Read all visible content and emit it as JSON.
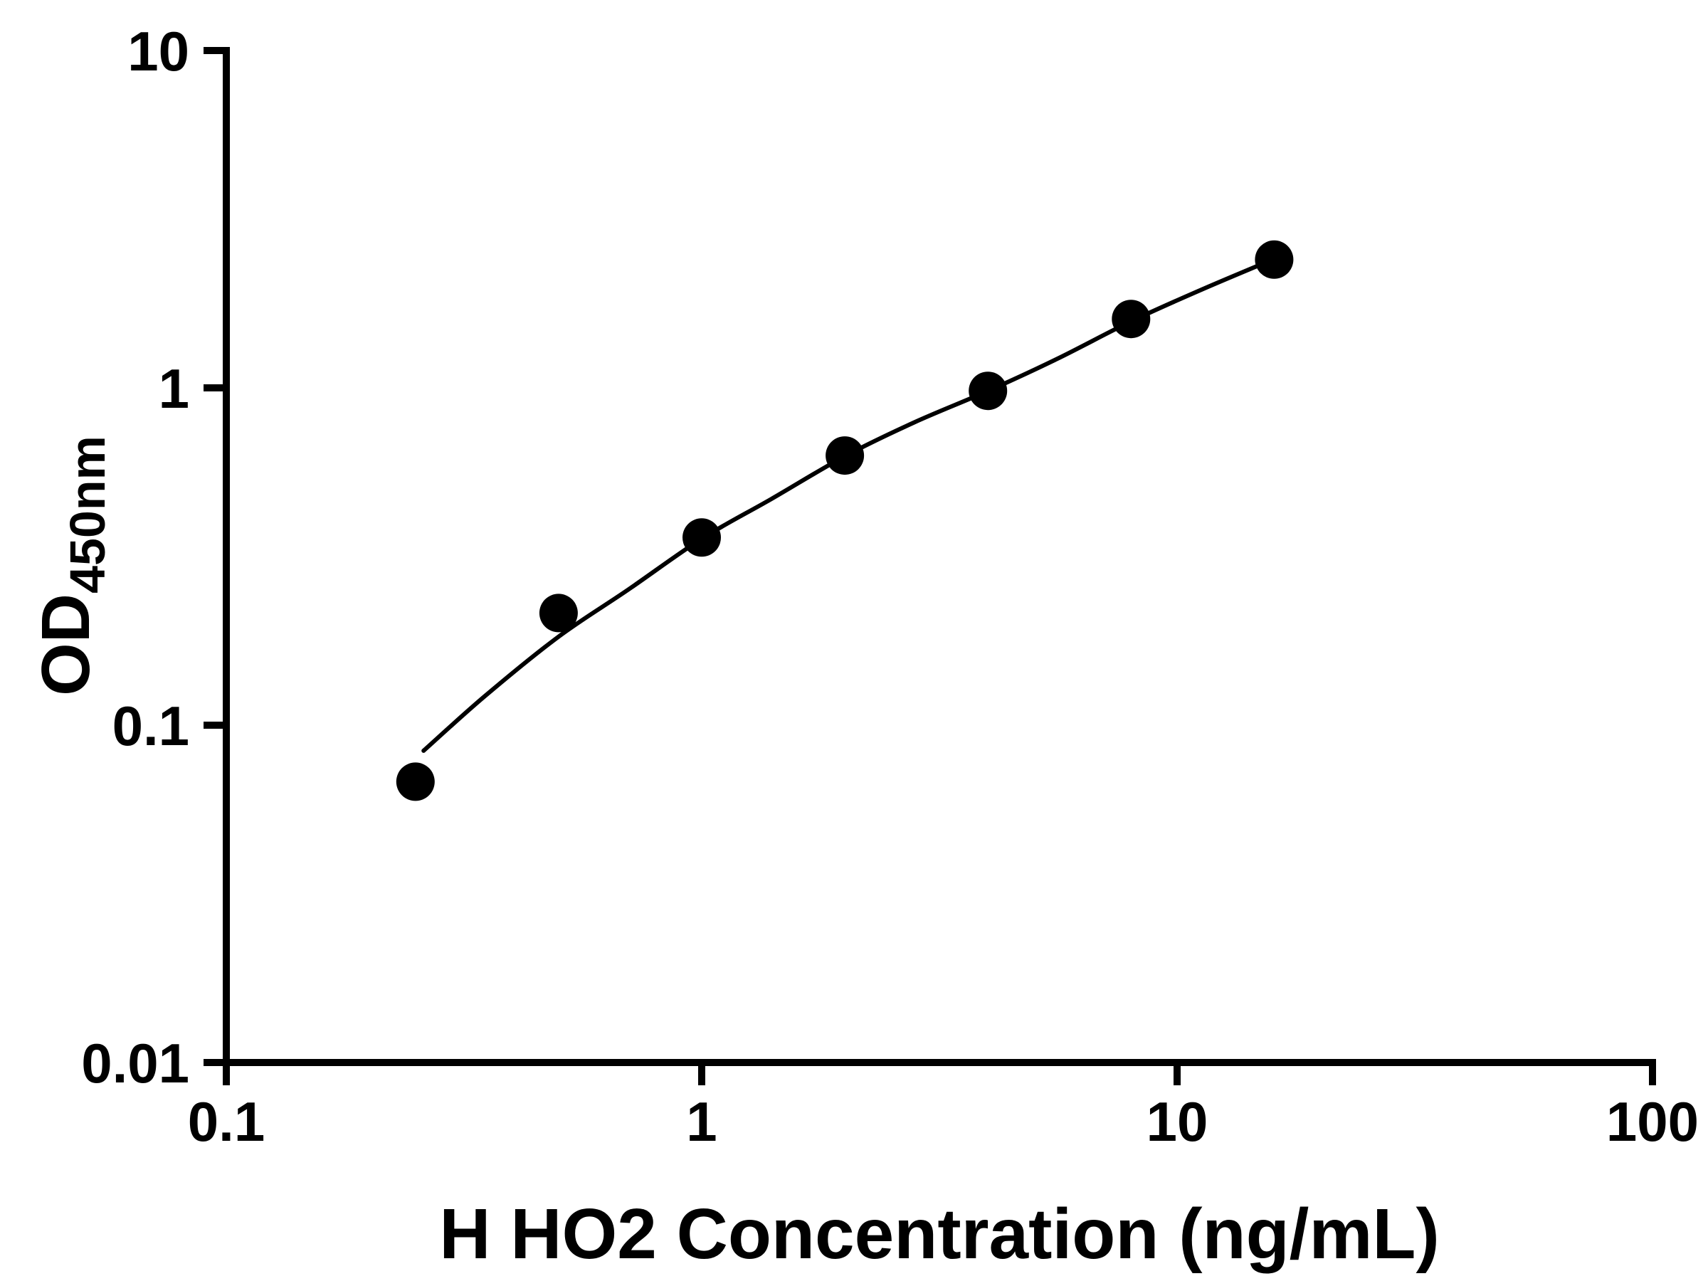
{
  "chart_data": {
    "type": "scatter",
    "title": "",
    "xlabel": "H HO2 Concentration (ng/mL)",
    "ylabel": "OD",
    "ylabel_subscript": "450nm",
    "x_scale": "log",
    "y_scale": "log",
    "xlim": [
      0.1,
      100
    ],
    "ylim": [
      0.01,
      10
    ],
    "grid": false,
    "legend": false,
    "x_ticks": [
      {
        "value": 0.1,
        "label": "0.1"
      },
      {
        "value": 1,
        "label": "1"
      },
      {
        "value": 10,
        "label": "10"
      },
      {
        "value": 100,
        "label": "100"
      }
    ],
    "y_ticks": [
      {
        "value": 0.01,
        "label": "0.01"
      },
      {
        "value": 0.1,
        "label": "0.1"
      },
      {
        "value": 1,
        "label": "1"
      },
      {
        "value": 10,
        "label": "10"
      }
    ],
    "points": [
      {
        "x": 0.25,
        "y": 0.068
      },
      {
        "x": 0.5,
        "y": 0.215
      },
      {
        "x": 1,
        "y": 0.36
      },
      {
        "x": 2,
        "y": 0.63
      },
      {
        "x": 4,
        "y": 0.98
      },
      {
        "x": 8,
        "y": 1.6
      },
      {
        "x": 16,
        "y": 2.4
      }
    ],
    "fit_curve": [
      [
        0.26,
        0.084
      ],
      [
        0.35,
        0.122
      ],
      [
        0.5,
        0.183
      ],
      [
        0.7,
        0.252
      ],
      [
        1.0,
        0.357
      ],
      [
        1.4,
        0.468
      ],
      [
        2.0,
        0.627
      ],
      [
        2.8,
        0.79
      ],
      [
        4.0,
        0.979
      ],
      [
        5.6,
        1.22
      ],
      [
        8.0,
        1.574
      ],
      [
        11.3,
        1.96
      ],
      [
        16.0,
        2.41
      ]
    ],
    "marker_color": "#000000",
    "line_color": "#000000",
    "axis_color": "#000000",
    "background": "#ffffff"
  }
}
